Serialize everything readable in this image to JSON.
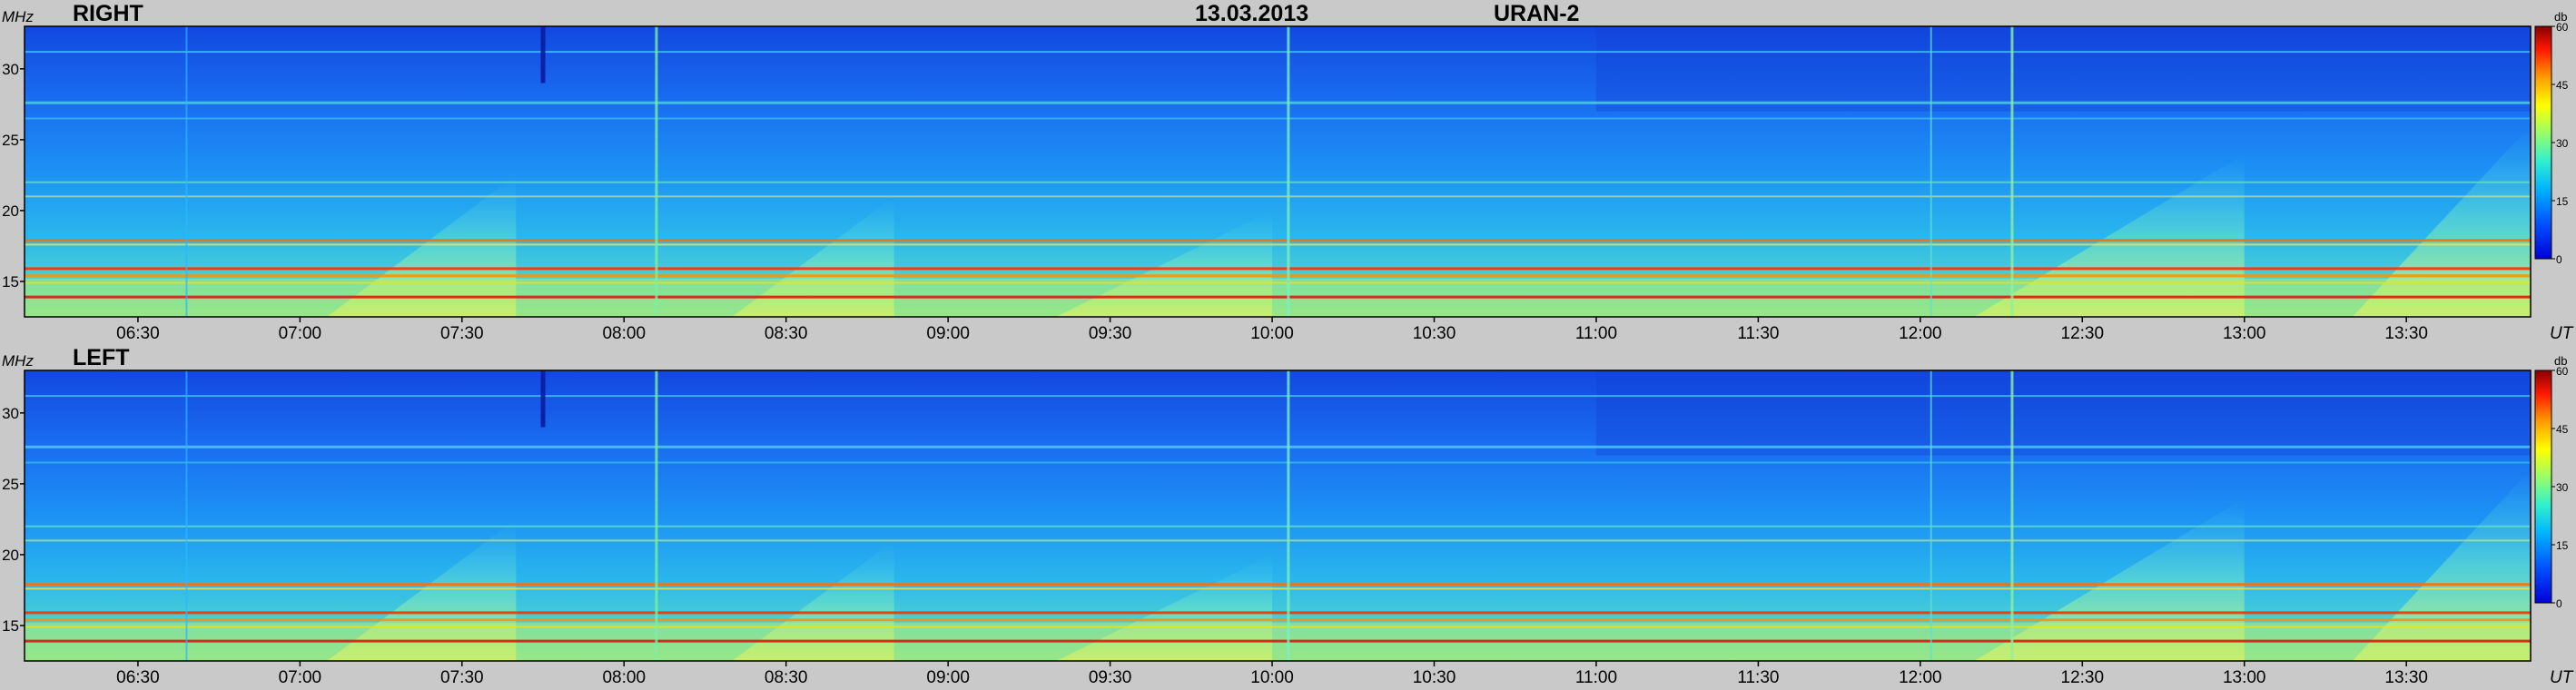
{
  "header": {
    "date": "13.03.2013",
    "instrument": "URAN-2"
  },
  "chart_data": [
    {
      "type": "heatmap",
      "title": "RIGHT",
      "ylabel": "MHz",
      "xlabel": "UT",
      "ylim": [
        12.5,
        33
      ],
      "yticks": [
        "15",
        "20",
        "25",
        "30"
      ],
      "ytick_values": [
        15,
        20,
        25,
        30
      ],
      "xticks": [
        "06:30",
        "07:00",
        "07:30",
        "08:00",
        "08:30",
        "09:00",
        "09:30",
        "10:00",
        "10:30",
        "11:00",
        "11:30",
        "12:00",
        "12:30",
        "13:00",
        "13:30"
      ],
      "xlim": [
        "06:09",
        "13:53"
      ],
      "colorbar": {
        "label": "db",
        "range": [
          0,
          60
        ],
        "ticks": [
          "0",
          "15",
          "30",
          "45",
          "60"
        ]
      },
      "grid": false
    },
    {
      "type": "heatmap",
      "title": "LEFT",
      "ylabel": "MHz",
      "xlabel": "UT",
      "ylim": [
        12.5,
        33
      ],
      "yticks": [
        "15",
        "20",
        "25",
        "30"
      ],
      "ytick_values": [
        15,
        20,
        25,
        30
      ],
      "xticks": [
        "06:30",
        "07:00",
        "07:30",
        "08:00",
        "08:30",
        "09:00",
        "09:30",
        "10:00",
        "10:30",
        "11:00",
        "11:30",
        "12:00",
        "12:30",
        "13:00",
        "13:30"
      ],
      "xlim": [
        "06:09",
        "13:53"
      ],
      "colorbar": {
        "label": "db",
        "range": [
          0,
          60
        ],
        "ticks": [
          "0",
          "15",
          "30",
          "45",
          "60"
        ]
      },
      "grid": false
    }
  ]
}
